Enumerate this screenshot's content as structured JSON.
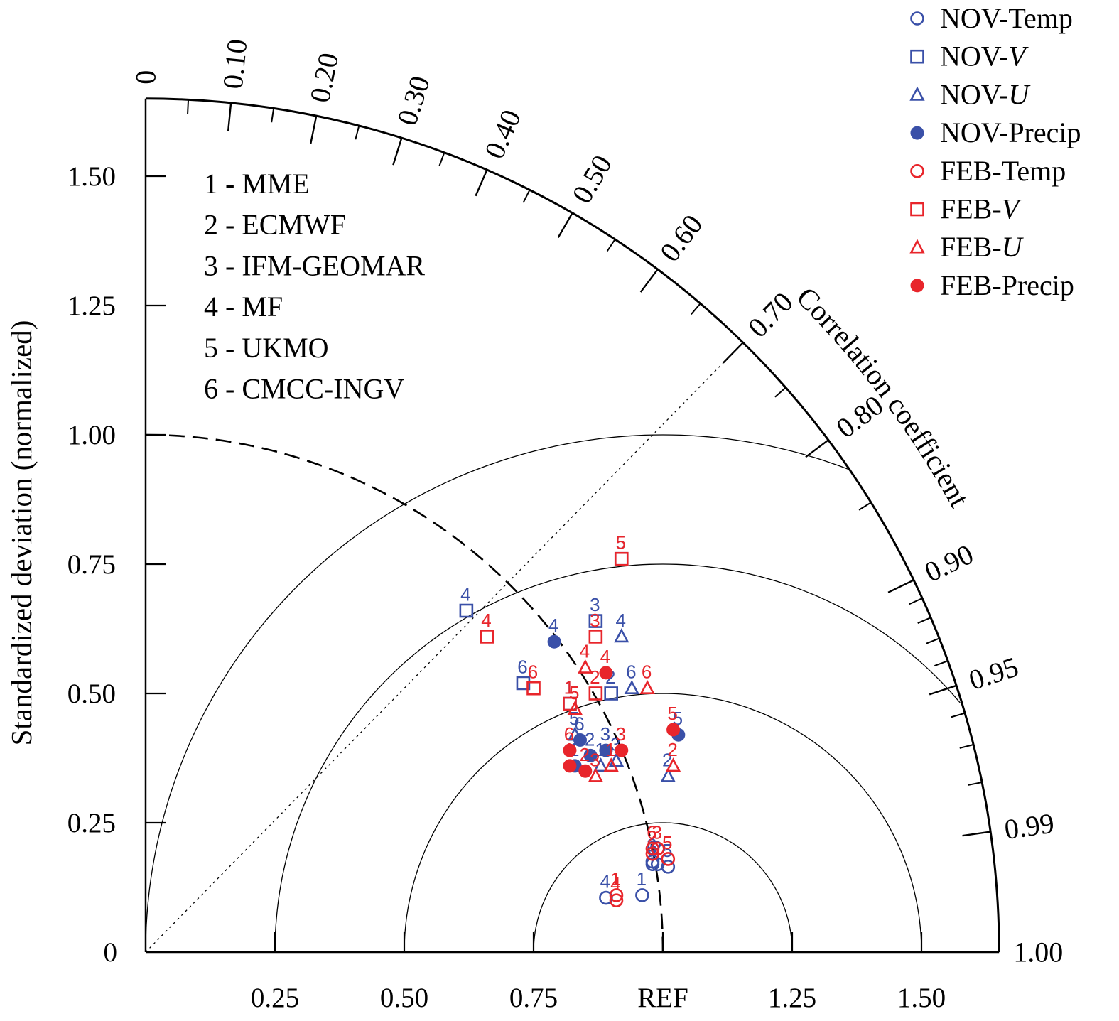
{
  "chart_data": {
    "type": "scatter",
    "subtype": "taylor-diagram",
    "ylabel": "Standardized deviation (normalized)",
    "arc_label": "Correlation coefficient",
    "ref_label": "REF",
    "std_max": 1.65,
    "x_tick_labels": [
      "0.25",
      "0.50",
      "0.75",
      "REF",
      "1.25",
      "1.50"
    ],
    "x_tick_values": [
      0.25,
      0.5,
      0.75,
      1.0,
      1.25,
      1.5
    ],
    "y_tick_labels": [
      "0",
      "0.25",
      "0.50",
      "0.75",
      "1.00",
      "1.25",
      "1.50"
    ],
    "y_tick_values": [
      0,
      0.25,
      0.5,
      0.75,
      1.0,
      1.25,
      1.5
    ],
    "corr_labels": [
      {
        "value": 0,
        "text": "0"
      },
      {
        "value": 0.1,
        "text": "0.10"
      },
      {
        "value": 0.2,
        "text": "0.20"
      },
      {
        "value": 0.3,
        "text": "0.30"
      },
      {
        "value": 0.4,
        "text": "0.40"
      },
      {
        "value": 0.5,
        "text": "0.50"
      },
      {
        "value": 0.6,
        "text": "0.60"
      },
      {
        "value": 0.7,
        "text": "0.70"
      },
      {
        "value": 0.8,
        "text": "0.80"
      },
      {
        "value": 0.9,
        "text": "0.90"
      },
      {
        "value": 0.95,
        "text": "0.95"
      },
      {
        "value": 0.99,
        "text": "0.99"
      },
      {
        "value": 1.0,
        "text": "1.00"
      }
    ],
    "corr_major_ticks": [
      0.1,
      0.2,
      0.3,
      0.4,
      0.5,
      0.6,
      0.7,
      0.8,
      0.9,
      0.95,
      0.99
    ],
    "corr_minor_ticks": [
      0.05,
      0.15,
      0.25,
      0.35,
      0.45,
      0.55,
      0.65,
      0.75,
      0.85,
      0.91,
      0.92,
      0.93,
      0.94,
      0.96,
      0.97,
      0.98
    ],
    "rmsd_circles": [
      0.25,
      0.5,
      0.75,
      1.0
    ],
    "ref_std_dashed": 1.0,
    "dotted_corr_line": 0.7,
    "models": [
      "1 - MME",
      "2 - ECMWF",
      "3 - IFM-GEOMAR",
      "4 - MF",
      "5 - UKMO",
      "6 - CMCC-INGV"
    ],
    "legend": [
      {
        "prefix": "NOV-",
        "var": "Temp",
        "italic": false,
        "marker": "circle-open",
        "color": "#3a50a8"
      },
      {
        "prefix": "NOV-",
        "var": "V",
        "italic": true,
        "marker": "square-open",
        "color": "#3a50a8"
      },
      {
        "prefix": "NOV-",
        "var": "U",
        "italic": true,
        "marker": "triangle-open",
        "color": "#3a50a8"
      },
      {
        "prefix": "NOV-",
        "var": "Precip",
        "italic": false,
        "marker": "circle-filled",
        "color": "#3a50a8"
      },
      {
        "prefix": "FEB-",
        "var": "Temp",
        "italic": false,
        "marker": "circle-open",
        "color": "#e8252b"
      },
      {
        "prefix": "FEB-",
        "var": "V",
        "italic": true,
        "marker": "square-open",
        "color": "#e8252b"
      },
      {
        "prefix": "FEB-",
        "var": "U",
        "italic": true,
        "marker": "triangle-open",
        "color": "#e8252b"
      },
      {
        "prefix": "FEB-",
        "var": "Precip",
        "italic": false,
        "marker": "circle-filled",
        "color": "#e8252b"
      }
    ],
    "colors": {
      "NOV": "#3a50a8",
      "FEB": "#e8252b",
      "axis": "#000000"
    },
    "series": [
      {
        "name": "NOV-Temp",
        "marker": "circle-open",
        "color": "#3a50a8",
        "points": [
          {
            "model": "1",
            "x": 0.96,
            "y": 0.11
          },
          {
            "model": "2",
            "x": 0.99,
            "y": 0.17
          },
          {
            "model": "3",
            "x": 0.98,
            "y": 0.175
          },
          {
            "model": "4",
            "x": 0.89,
            "y": 0.105
          },
          {
            "model": "5",
            "x": 1.01,
            "y": 0.165
          },
          {
            "model": "6",
            "x": 0.98,
            "y": 0.17
          }
        ]
      },
      {
        "name": "NOV-V",
        "marker": "square-open",
        "color": "#3a50a8",
        "points": [
          {
            "model": "1",
            "x": 0.82,
            "y": 0.48
          },
          {
            "model": "2",
            "x": 0.9,
            "y": 0.5
          },
          {
            "model": "3",
            "x": 0.87,
            "y": 0.64
          },
          {
            "model": "4",
            "x": 0.62,
            "y": 0.66
          },
          {
            "model": "5",
            "x": 0.92,
            "y": 0.76
          },
          {
            "model": "6",
            "x": 0.73,
            "y": 0.52
          }
        ]
      },
      {
        "name": "NOV-U",
        "marker": "triangle-open",
        "color": "#3a50a8",
        "points": [
          {
            "model": "1",
            "x": 0.88,
            "y": 0.36
          },
          {
            "model": "2",
            "x": 1.01,
            "y": 0.34
          },
          {
            "model": "3",
            "x": 0.91,
            "y": 0.37
          },
          {
            "model": "4",
            "x": 0.92,
            "y": 0.61
          },
          {
            "model": "5",
            "x": 0.83,
            "y": 0.42
          },
          {
            "model": "6",
            "x": 0.94,
            "y": 0.51
          }
        ]
      },
      {
        "name": "NOV-Precip",
        "marker": "circle-filled",
        "color": "#3a50a8",
        "points": [
          {
            "model": "1",
            "x": 0.83,
            "y": 0.36
          },
          {
            "model": "2",
            "x": 0.86,
            "y": 0.38
          },
          {
            "model": "3",
            "x": 0.89,
            "y": 0.39
          },
          {
            "model": "4",
            "x": 0.79,
            "y": 0.6
          },
          {
            "model": "5",
            "x": 1.03,
            "y": 0.42
          },
          {
            "model": "6",
            "x": 0.84,
            "y": 0.41
          }
        ]
      },
      {
        "name": "FEB-Temp",
        "marker": "circle-open",
        "color": "#e8252b",
        "points": [
          {
            "model": "1",
            "x": 0.91,
            "y": 0.11
          },
          {
            "model": "2",
            "x": 0.98,
            "y": 0.19
          },
          {
            "model": "3",
            "x": 0.99,
            "y": 0.2
          },
          {
            "model": "4",
            "x": 0.91,
            "y": 0.1
          },
          {
            "model": "5",
            "x": 1.01,
            "y": 0.18
          },
          {
            "model": "6",
            "x": 0.98,
            "y": 0.2
          }
        ]
      },
      {
        "name": "FEB-V",
        "marker": "square-open",
        "color": "#e8252b",
        "points": [
          {
            "model": "1",
            "x": 0.82,
            "y": 0.48
          },
          {
            "model": "2",
            "x": 0.87,
            "y": 0.5
          },
          {
            "model": "3",
            "x": 0.87,
            "y": 0.61
          },
          {
            "model": "4",
            "x": 0.66,
            "y": 0.61
          },
          {
            "model": "5",
            "x": 0.92,
            "y": 0.76
          },
          {
            "model": "6",
            "x": 0.75,
            "y": 0.51
          }
        ]
      },
      {
        "name": "FEB-U",
        "marker": "triangle-open",
        "color": "#e8252b",
        "points": [
          {
            "model": "1",
            "x": 0.9,
            "y": 0.36
          },
          {
            "model": "2",
            "x": 1.02,
            "y": 0.36
          },
          {
            "model": "3",
            "x": 0.87,
            "y": 0.34
          },
          {
            "model": "4",
            "x": 0.85,
            "y": 0.55
          },
          {
            "model": "5",
            "x": 0.83,
            "y": 0.47
          },
          {
            "model": "6",
            "x": 0.97,
            "y": 0.51
          }
        ]
      },
      {
        "name": "FEB-Precip",
        "marker": "circle-filled",
        "color": "#e8252b",
        "points": [
          {
            "model": "1",
            "x": 0.82,
            "y": 0.36
          },
          {
            "model": "2",
            "x": 0.85,
            "y": 0.35
          },
          {
            "model": "3",
            "x": 0.92,
            "y": 0.39
          },
          {
            "model": "4",
            "x": 0.89,
            "y": 0.54
          },
          {
            "model": "5",
            "x": 1.02,
            "y": 0.43
          },
          {
            "model": "6",
            "x": 0.82,
            "y": 0.39
          }
        ]
      }
    ]
  }
}
